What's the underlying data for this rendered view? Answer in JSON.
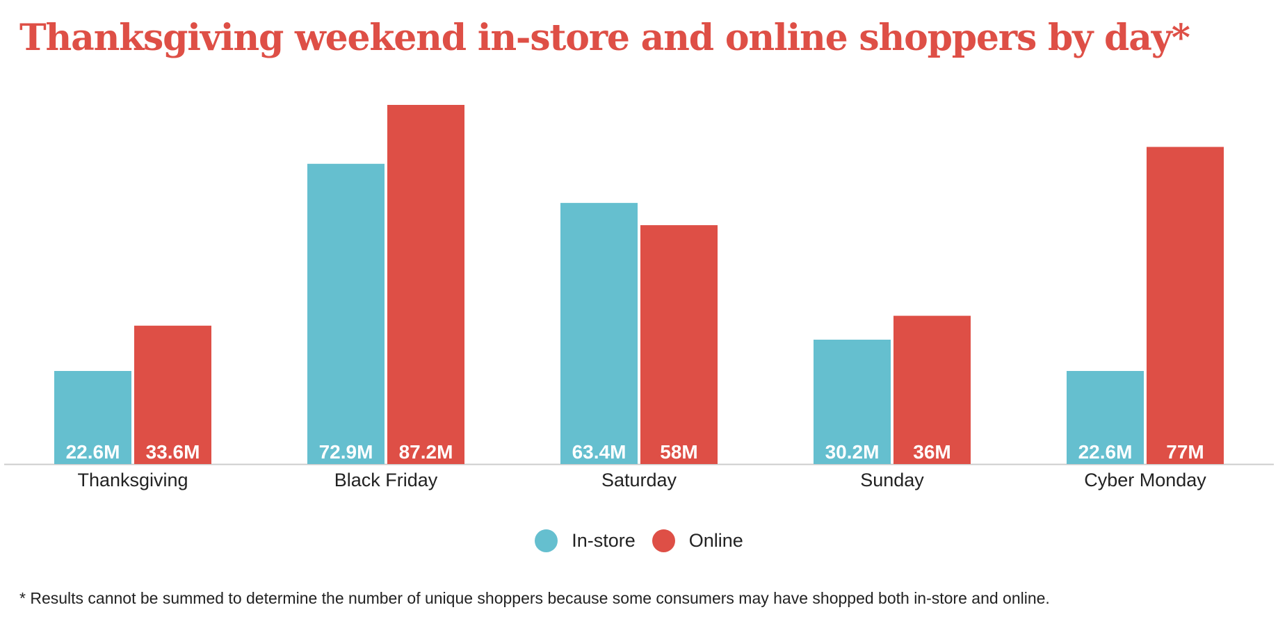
{
  "title": "Thanksgiving weekend in-store and online shoppers by day*",
  "footnote": "* Results cannot be summed to determine the number of unique shoppers because some consumers may have shopped both in-store and online.",
  "colors": {
    "in_store": "#65bfcf",
    "online": "#de4f46",
    "title": "#de4f46",
    "axis": "#cccccc"
  },
  "chart_data": {
    "type": "bar",
    "title": "Thanksgiving weekend in-store and online shoppers by day*",
    "categories": [
      "Thanksgiving",
      "Black Friday",
      "Saturday",
      "Sunday",
      "Cyber Monday"
    ],
    "series": [
      {
        "name": "In-store",
        "values": [
          22.6,
          72.9,
          63.4,
          30.2,
          22.6
        ],
        "labels": [
          "22.6M",
          "72.9M",
          "63.4M",
          "30.2M",
          "22.6M"
        ]
      },
      {
        "name": "Online",
        "values": [
          33.6,
          87.2,
          58,
          36,
          77
        ],
        "labels": [
          "33.6M",
          "87.2M",
          "58M",
          "36M",
          "77M"
        ]
      }
    ],
    "unit": "M",
    "ylim": [
      0,
      87.2
    ],
    "grid": false,
    "legend_position": "bottom-center"
  }
}
